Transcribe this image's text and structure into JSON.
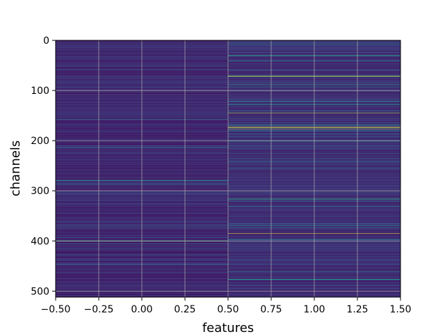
{
  "chart_data": {
    "type": "heatmap",
    "title": "",
    "xlabel": "features",
    "ylabel": "channels",
    "xlim": [
      -0.5,
      1.5
    ],
    "ylim": [
      512,
      0
    ],
    "y_inverted": true,
    "grid": true,
    "colormap": "viridis",
    "columns": [
      0,
      1
    ],
    "row_count": 512,
    "x_tick_labels": [
      "−0.50",
      "−0.25",
      "0.00",
      "0.25",
      "0.50",
      "0.75",
      "1.00",
      "1.25",
      "1.50"
    ],
    "x_ticks": [
      -0.5,
      -0.25,
      0.0,
      0.25,
      0.5,
      0.75,
      1.0,
      1.25,
      1.5
    ],
    "y_tick_labels": [
      "0",
      "100",
      "200",
      "300",
      "400",
      "500"
    ],
    "y_ticks": [
      0,
      100,
      200,
      300,
      400,
      500
    ],
    "column_base_value": [
      0.12,
      0.14
    ],
    "highlight_rows": [
      {
        "column": 0,
        "row": 279,
        "value": 0.45
      },
      {
        "column": 0,
        "row": 400,
        "value": 0.7
      },
      {
        "column": 0,
        "row": 405,
        "value": 0.35
      },
      {
        "column": 1,
        "row": 30,
        "value": 0.55
      },
      {
        "column": 1,
        "row": 40,
        "value": 0.5
      },
      {
        "column": 1,
        "row": 71,
        "value": 0.85
      },
      {
        "column": 1,
        "row": 88,
        "value": 0.55
      },
      {
        "column": 1,
        "row": 145,
        "value": 0.9
      },
      {
        "column": 1,
        "row": 173,
        "value": 0.95
      },
      {
        "column": 1,
        "row": 176,
        "value": 0.85
      },
      {
        "column": 1,
        "row": 200,
        "value": 0.5
      },
      {
        "column": 1,
        "row": 316,
        "value": 0.55
      },
      {
        "column": 1,
        "row": 385,
        "value": 1.0
      },
      {
        "column": 1,
        "row": 476,
        "value": 0.5
      }
    ]
  }
}
